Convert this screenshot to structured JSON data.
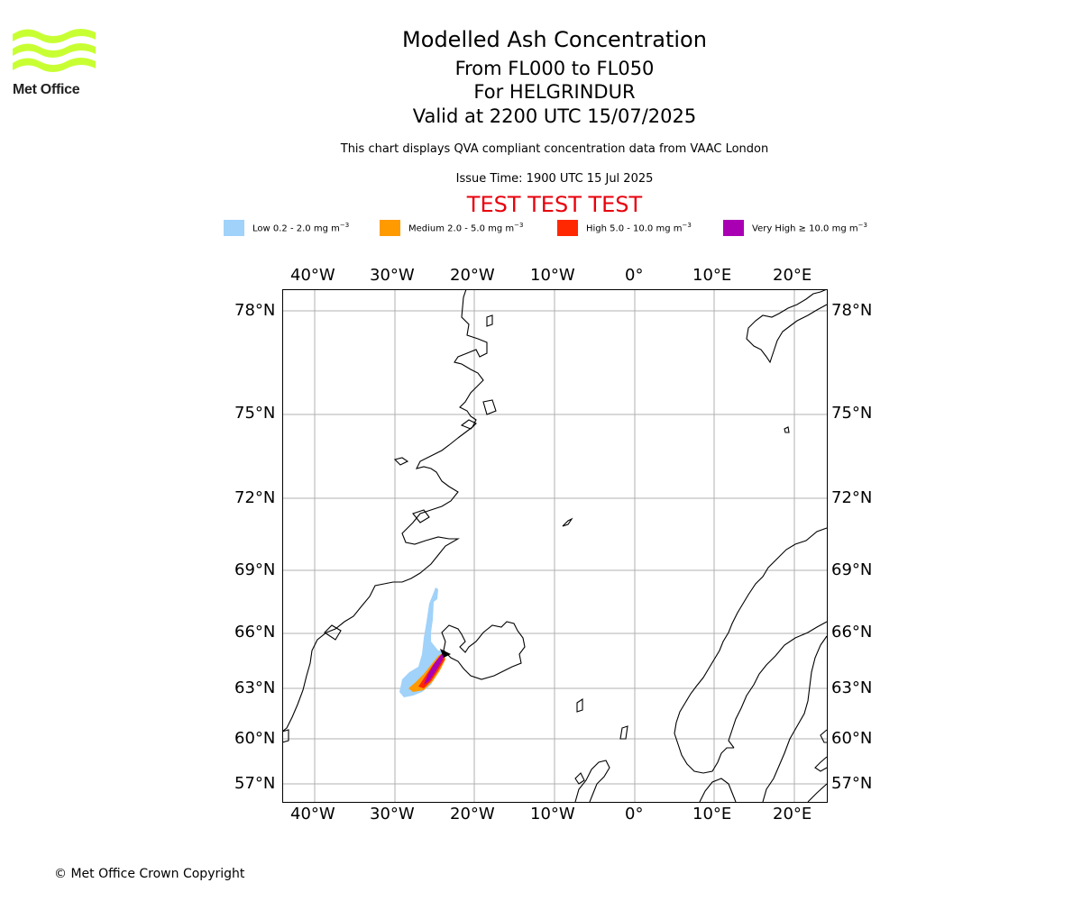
{
  "logo": {
    "text": "Met Office",
    "color": "#c8ff33"
  },
  "header": {
    "title": "Modelled Ash Concentration",
    "line2": "From FL000 to FL050",
    "line3": "For HELGRINDUR",
    "line4": "Valid at 2200 UTC 15/07/2025",
    "disclaimer": "This chart displays QVA compliant concentration data from VAAC London",
    "issue_time": "Issue Time: 1900 UTC 15 Jul 2025",
    "test_banner": "TEST TEST TEST"
  },
  "legend": [
    {
      "label": "Low 0.2 - 2.0 mg m",
      "sup": "−3",
      "color": "#a0d2fa"
    },
    {
      "label": "Medium 2.0 - 5.0 mg m",
      "sup": "−3",
      "color": "#ff9a00"
    },
    {
      "label": "High 5.0 - 10.0 mg m",
      "sup": "−3",
      "color": "#ff2800"
    },
    {
      "label": "Very High  ≥  10.0 mg m",
      "sup": "−3",
      "color": "#aa00b4"
    }
  ],
  "map": {
    "lon_ticks": [
      "40°W",
      "30°W",
      "20°W",
      "10°W",
      "0°",
      "10°E",
      "20°E"
    ],
    "lat_ticks": [
      "78°N",
      "75°N",
      "72°N",
      "69°N",
      "66°N",
      "63°N",
      "60°N",
      "57°N"
    ],
    "lon_range": [
      "44°W",
      "24°E"
    ],
    "lat_range": [
      "56°N",
      "79°N"
    ],
    "gridlines": true,
    "volcano": "HELGRINDUR"
  },
  "footer": {
    "copyright": "© Met Office Crown Copyright"
  }
}
